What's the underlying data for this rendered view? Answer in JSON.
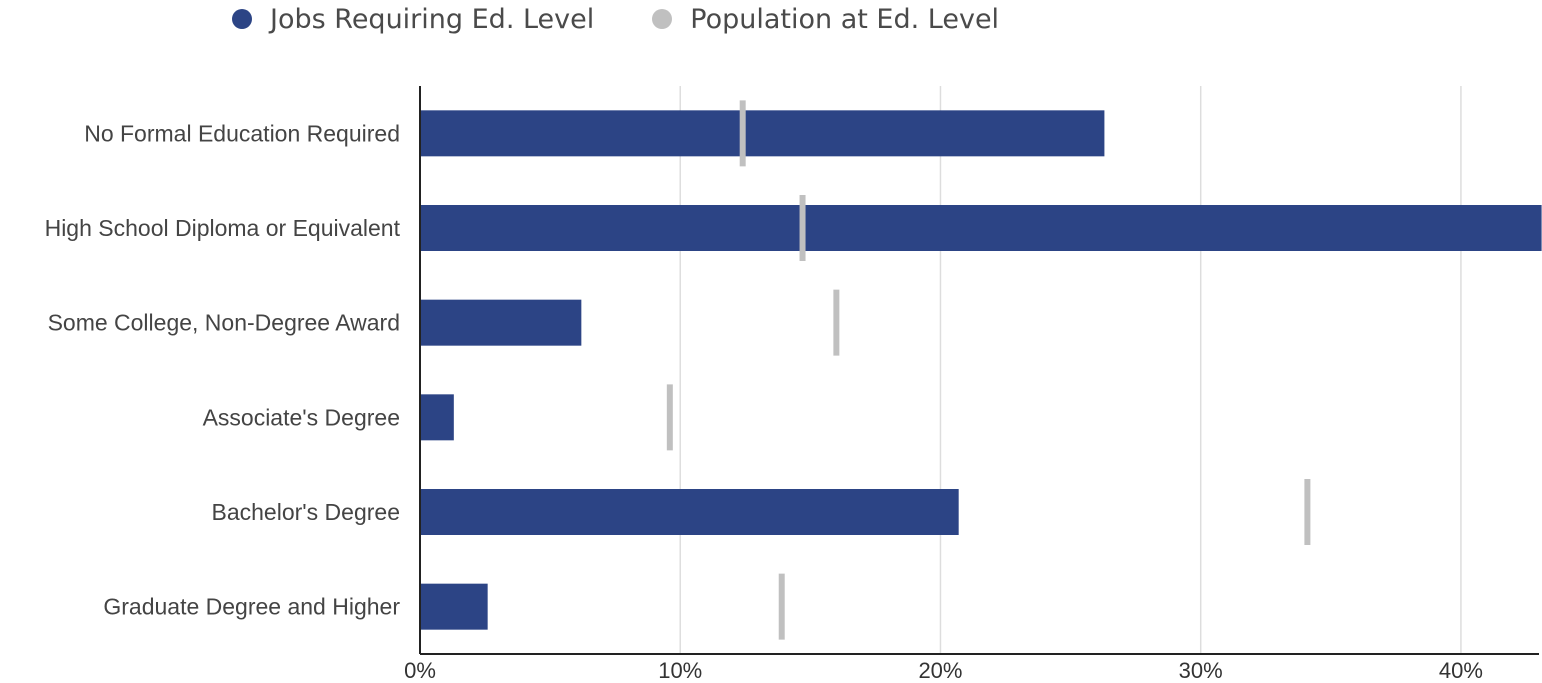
{
  "legend": {
    "jobs_label": "Jobs Requiring Ed. Level",
    "population_label": "Population at Ed. Level"
  },
  "colors": {
    "jobs": "#2c4485",
    "population": "#c0c0c0",
    "grid": "#dddddd",
    "axis": "#222222"
  },
  "chart_data": {
    "type": "bar",
    "orientation": "horizontal",
    "categories": [
      "No Formal Education Required",
      "High School Diploma or Equivalent",
      "Some College, Non-Degree Award",
      "Associate's Degree",
      "Bachelor's Degree",
      "Graduate Degree and Higher"
    ],
    "series": [
      {
        "name": "Jobs Requiring Ed. Level",
        "style": "bar",
        "values": [
          26.3,
          43.1,
          6.2,
          1.3,
          20.7,
          2.6
        ]
      },
      {
        "name": "Population at Ed. Level",
        "style": "marker",
        "values": [
          12.4,
          14.7,
          16.0,
          9.6,
          34.1,
          13.9
        ]
      }
    ],
    "xlim": [
      0,
      43
    ],
    "xticks": [
      0,
      10,
      20,
      30,
      40
    ],
    "xtick_labels": [
      "0%",
      "10%",
      "20%",
      "30%",
      "40%"
    ],
    "grid": true,
    "legend_position": "top"
  }
}
